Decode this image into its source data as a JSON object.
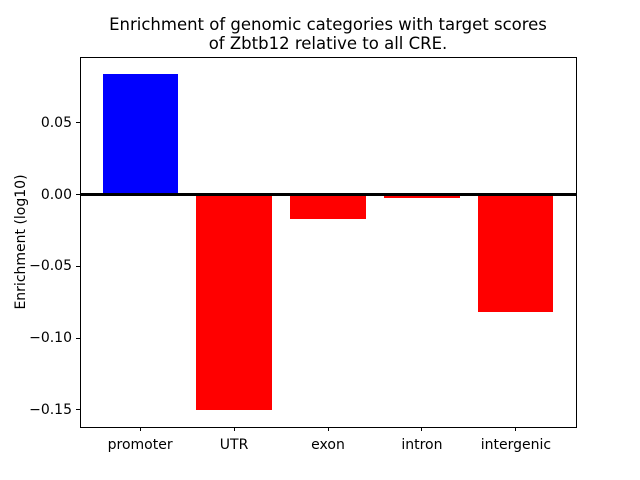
{
  "chart_data": {
    "type": "bar",
    "title": "Enrichment of genomic categories with target scores\nof Zbtb12 relative to all CRE.",
    "ylabel": "Enrichment (log10)",
    "categories": [
      "promoter",
      "UTR",
      "exon",
      "intron",
      "intergenic"
    ],
    "values": [
      0.084,
      -0.15,
      -0.017,
      -0.002,
      -0.082
    ],
    "bar_colors": [
      "#0000ff",
      "#ff0000",
      "#ff0000",
      "#ff0000",
      "#ff0000"
    ],
    "positive_color": "#0000ff",
    "negative_color": "#ff0000",
    "yticks": [
      {
        "value": 0.05,
        "label": "0.05"
      },
      {
        "value": 0.0,
        "label": "0.00"
      },
      {
        "value": -0.05,
        "label": "−0.05"
      },
      {
        "value": -0.1,
        "label": "−0.10"
      },
      {
        "value": -0.15,
        "label": "−0.15"
      }
    ],
    "ylim": [
      -0.162,
      0.096
    ],
    "xlim": [
      -0.64,
      4.64
    ],
    "bar_width_units": 0.8,
    "zero_line": true,
    "grid": false,
    "legend": null
  }
}
